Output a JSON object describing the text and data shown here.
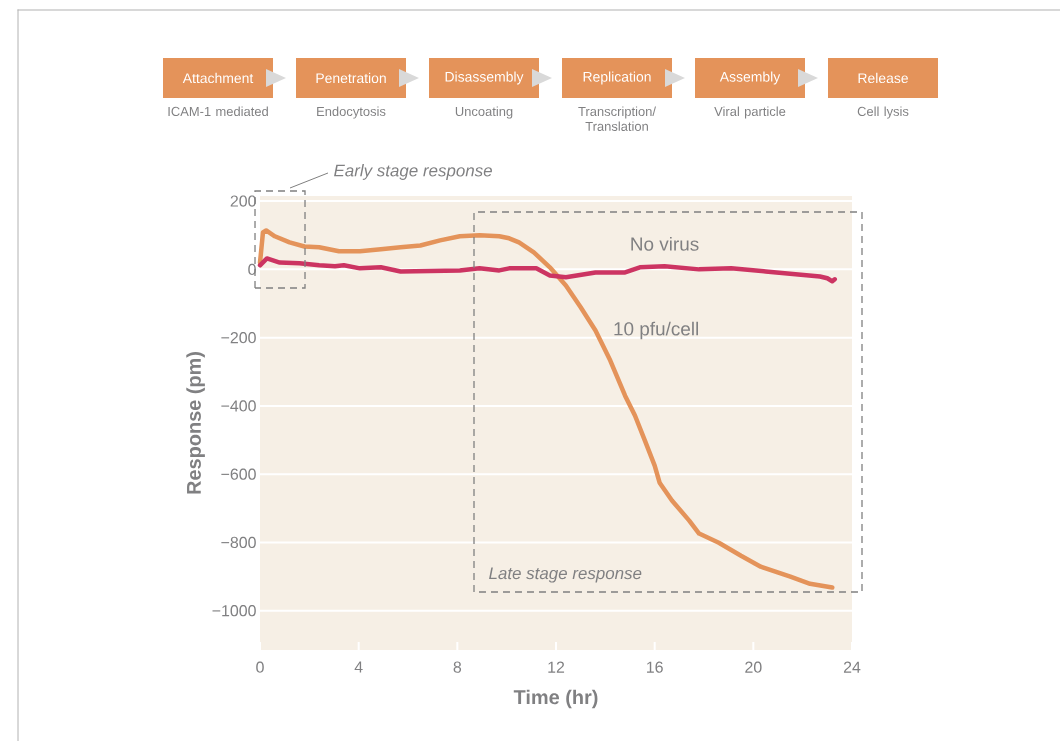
{
  "chart_data": {
    "type": "line",
    "xlabel": "Time (hr)",
    "ylabel": "Response (pm)",
    "xlim": [
      0,
      24
    ],
    "ylim": [
      -1115,
      215
    ],
    "xticks": [
      0,
      4,
      8,
      12,
      16,
      20,
      24
    ],
    "yticks": [
      {
        "value": -1000,
        "label": "−1000"
      },
      {
        "value": -800,
        "label": "−800"
      },
      {
        "value": -600,
        "label": "−600"
      },
      {
        "value": -400,
        "label": "−400"
      },
      {
        "value": -200,
        "label": "−200"
      },
      0,
      200
    ],
    "grid": "y",
    "legend": false,
    "marker": "none",
    "line_style": "solid",
    "annotations": [
      "Attachment",
      "Penetration",
      "Disassembly",
      "Replication",
      "Assembly",
      "Release",
      "ICAM-1 mediated",
      "Endocytosis",
      "Uncoating",
      "Transcription/ Translation",
      "Viral particle",
      "Cell lysis",
      "Early stage response",
      "Late stage response"
    ],
    "series": [
      {
        "name": "10 pfu/cell",
        "color": "#e4935a",
        "x": [
          0,
          0.12,
          0.25,
          0.6,
          1.2,
          1.8,
          2.4,
          3.2,
          4.05,
          4.9,
          5.7,
          6.5,
          7.3,
          8.1,
          8.9,
          9.7,
          10.1,
          10.5,
          11.1,
          11.75,
          12.4,
          13,
          13.6,
          14.2,
          14.8,
          15.2,
          15.6,
          16,
          16.2,
          16.7,
          17.4,
          17.8,
          18.6,
          19.5,
          20.3,
          21.5,
          22.3,
          23.2
        ],
        "values": [
          20,
          108,
          114,
          97,
          79,
          67,
          65,
          53,
          53,
          59,
          65,
          70,
          85,
          97,
          100,
          97,
          91,
          79,
          50,
          6,
          -47,
          -111,
          -179,
          -267,
          -370,
          -428,
          -501,
          -575,
          -625,
          -677,
          -736,
          -774,
          -801,
          -839,
          -871,
          -900,
          -921,
          -932
        ]
      },
      {
        "name": "No virus",
        "color": "#cc3462",
        "x": [
          0,
          0.28,
          0.8,
          1.6,
          2.4,
          3.04,
          3.4,
          4.05,
          4.9,
          5.7,
          8.1,
          8.9,
          9.7,
          10.1,
          11.2,
          11.75,
          12.4,
          13.6,
          14.8,
          15.4,
          16.4,
          17.8,
          19.1,
          20.5,
          22.7,
          23,
          23.2,
          23.3
        ],
        "values": [
          12,
          32,
          20,
          18,
          12,
          9,
          12,
          3,
          6,
          -6,
          -3,
          3,
          -3,
          3,
          3,
          -18,
          -23,
          -9,
          -9,
          6,
          9,
          0,
          3,
          -6,
          -21,
          -26,
          -35,
          -29
        ]
      }
    ]
  }
}
